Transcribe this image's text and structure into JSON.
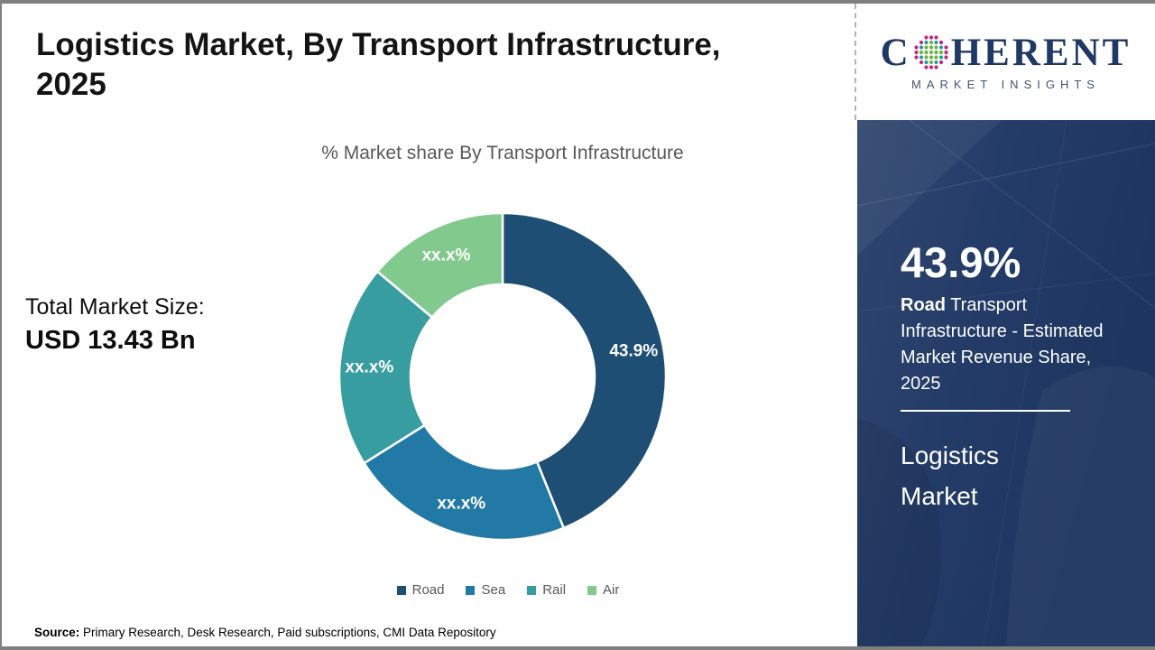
{
  "page": {
    "title_line1": "Logistics Market, By Transport Infrastructure,",
    "title_line2": "2025",
    "source_label": "Source:",
    "source_text": " Primary Research, Desk Research, Paid subscriptions, CMI Data Repository"
  },
  "logo": {
    "brand_prefix": "C",
    "brand_suffix": "HERENT",
    "tagline": "MARKET INSIGHTS",
    "colors": {
      "navy": "#1F3864",
      "teal": "#1D9F9B",
      "green": "#6CB33F",
      "magenta": "#C2267E"
    }
  },
  "stats": {
    "total_label": "Total Market Size:",
    "total_value": "USD 13.43 Bn"
  },
  "chart_data": {
    "type": "pie",
    "donut": true,
    "title": "% Market share By Transport Infrastructure",
    "categories": [
      "Road",
      "Sea",
      "Rail",
      "Air"
    ],
    "values": [
      43.9,
      22.2,
      20.0,
      13.9
    ],
    "value_labels": [
      "43.9%",
      "xx.x%",
      "xx.x%",
      "xx.x%"
    ],
    "colors": [
      "#1F4E74",
      "#2279A6",
      "#379DA0",
      "#82C98D"
    ],
    "legend_position": "bottom",
    "start_angle_deg": 0,
    "direction": "clockwise"
  },
  "sidebar": {
    "bg_color": "#1F3864",
    "highlight_value": "43.9%",
    "highlight_bold": "Road",
    "highlight_rest": " Transport Infrastructure - Estimated Market Revenue Share, 2025",
    "footer_title": "Logistics Market"
  }
}
